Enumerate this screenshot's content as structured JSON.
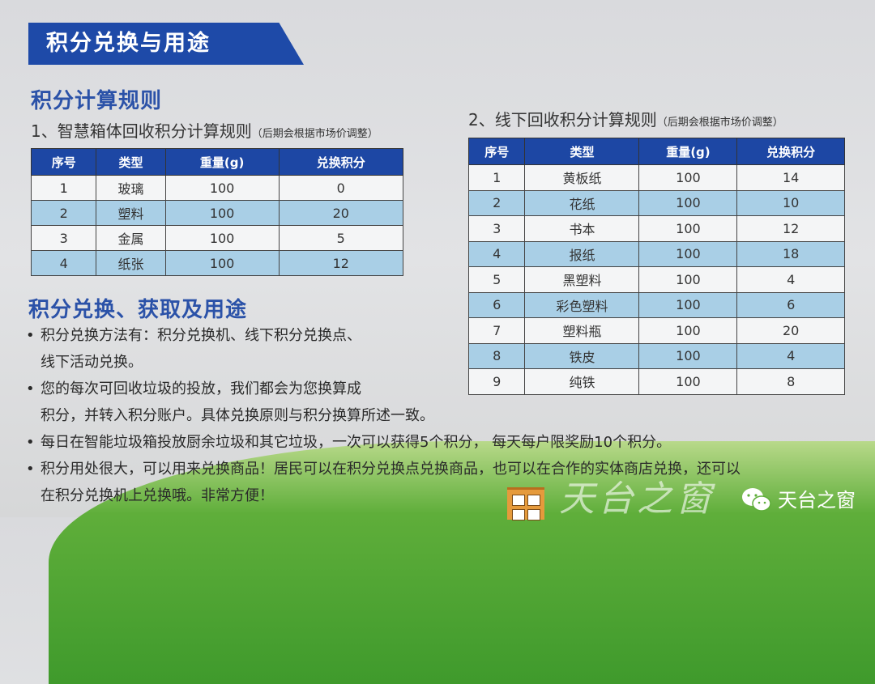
{
  "banner": {
    "title": "积分兑换与用途"
  },
  "calc": {
    "heading": "积分计算规则",
    "left": {
      "title": "1、智慧箱体回收积分计算规则",
      "note": "（后期会根据市场价调整）",
      "columns": [
        "序号",
        "类型",
        "重量(g)",
        "兑换积分"
      ],
      "rows": [
        [
          "1",
          "玻璃",
          "100",
          "0"
        ],
        [
          "2",
          "塑料",
          "100",
          "20"
        ],
        [
          "3",
          "金属",
          "100",
          "5"
        ],
        [
          "4",
          "纸张",
          "100",
          "12"
        ]
      ]
    },
    "right": {
      "title": "2、线下回收积分计算规则",
      "note": "（后期会根据市场价调整）",
      "columns": [
        "序号",
        "类型",
        "重量(g)",
        "兑换积分"
      ],
      "rows": [
        [
          "1",
          "黄板纸",
          "100",
          "14"
        ],
        [
          "2",
          "花纸",
          "100",
          "10"
        ],
        [
          "3",
          "书本",
          "100",
          "12"
        ],
        [
          "4",
          "报纸",
          "100",
          "18"
        ],
        [
          "5",
          "黑塑料",
          "100",
          "4"
        ],
        [
          "6",
          "彩色塑料",
          "100",
          "6"
        ],
        [
          "7",
          "塑料瓶",
          "100",
          "20"
        ],
        [
          "8",
          "铁皮",
          "100",
          "4"
        ],
        [
          "9",
          "纯铁",
          "100",
          "8"
        ]
      ]
    }
  },
  "usage": {
    "heading": "积分兑换、获取及用途",
    "bullets": [
      [
        "积分兑换方法有：积分兑换机、线下积分兑换点、",
        "线下活动兑换。"
      ],
      [
        "您的每次可回收垃圾的投放，我们都会为您换算成",
        "积分，并转入积分账户。具体兑换原则与积分换算所述一致。"
      ],
      [
        "每日在智能垃圾箱投放厨余垃圾和其它垃圾，一次可以获得5个积分， 每天每户限奖励10个积分。"
      ],
      [
        "积分用处很大，可以用来兑换商品！居民可以在积分兑换点兑换商品，也可以在合作的实体商店兑换，还可以",
        "在积分兑换机上兑换哦。非常方便！"
      ]
    ]
  },
  "watermark": {
    "logo_text": "天台之窗",
    "account_name": "天台之窗",
    "icon": "wechat-icon"
  },
  "colors": {
    "banner": "#1e4aa8",
    "heading": "#2b52a8",
    "table_header": "#1d47a4",
    "row_alt": "#a9cfe6",
    "hill": "#4fa334"
  }
}
